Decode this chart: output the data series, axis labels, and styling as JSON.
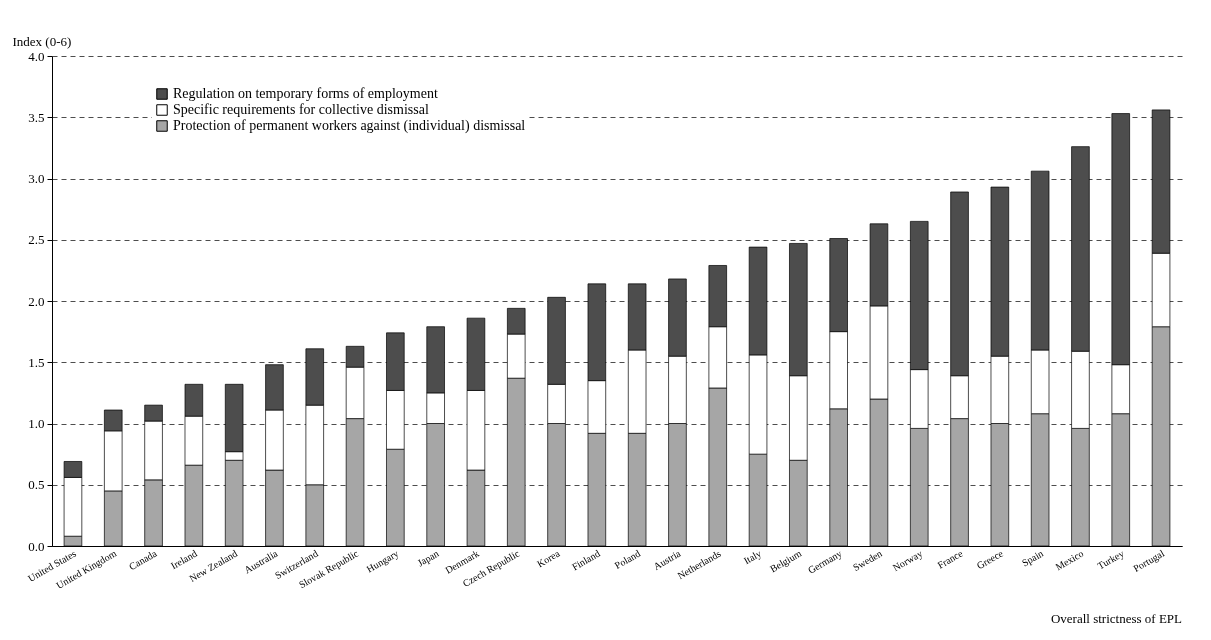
{
  "chart_data": {
    "type": "bar",
    "stacked": true,
    "ylabel": "Index (0-6)",
    "annotations": [
      "Overall strictness of EPL"
    ],
    "categories": [
      "United States",
      "United Kingdom",
      "Canada",
      "Ireland",
      "New Zealand",
      "Australia",
      "Switzerland",
      "Slovak Republic",
      "Hungary",
      "Japan",
      "Denmark",
      "Czech Republic",
      "Korea",
      "Finland",
      "Poland",
      "Austria",
      "Netherlands",
      "Italy",
      "Belgium",
      "Germany",
      "Sweden",
      "Norway",
      "France",
      "Greece",
      "Spain",
      "Mexico",
      "Turkey",
      "Portugal"
    ],
    "series": [
      {
        "name": "Protection of permanent workers against (individual) dismissal",
        "color": "#a6a6a6",
        "values": [
          0.08,
          0.45,
          0.54,
          0.66,
          0.7,
          0.62,
          0.5,
          1.04,
          0.79,
          1.0,
          0.62,
          1.37,
          1.0,
          0.92,
          0.92,
          1.0,
          1.29,
          0.75,
          0.7,
          1.12,
          1.2,
          0.96,
          1.04,
          1.0,
          1.08,
          0.96,
          1.08,
          1.79
        ]
      },
      {
        "name": "Specific requirements for collective dismissal",
        "color": "#ffffff",
        "values": [
          0.48,
          0.49,
          0.48,
          0.4,
          0.07,
          0.49,
          0.65,
          0.42,
          0.48,
          0.25,
          0.65,
          0.36,
          0.32,
          0.43,
          0.68,
          0.55,
          0.5,
          0.81,
          0.69,
          0.63,
          0.76,
          0.48,
          0.35,
          0.55,
          0.52,
          0.63,
          0.4,
          0.6
        ]
      },
      {
        "name": "Regulation on temporary forms of employment",
        "color": "#4d4d4d",
        "values": [
          0.13,
          0.17,
          0.13,
          0.26,
          0.55,
          0.37,
          0.46,
          0.17,
          0.47,
          0.54,
          0.59,
          0.21,
          0.71,
          0.79,
          0.54,
          0.63,
          0.5,
          0.88,
          1.08,
          0.76,
          0.67,
          1.21,
          1.5,
          1.38,
          1.46,
          1.67,
          2.05,
          1.17
        ]
      }
    ],
    "ylim": [
      0,
      4
    ],
    "yticks": [
      {
        "value": 0,
        "label": "0.0"
      },
      0.5,
      {
        "value": 1,
        "label": "1.0"
      },
      1.5,
      {
        "value": 2,
        "label": "2.0"
      },
      2.5,
      {
        "value": 3,
        "label": "3.0"
      },
      3.5,
      {
        "value": 4,
        "label": "4.0"
      }
    ],
    "grid": "y",
    "legend": "top left"
  }
}
